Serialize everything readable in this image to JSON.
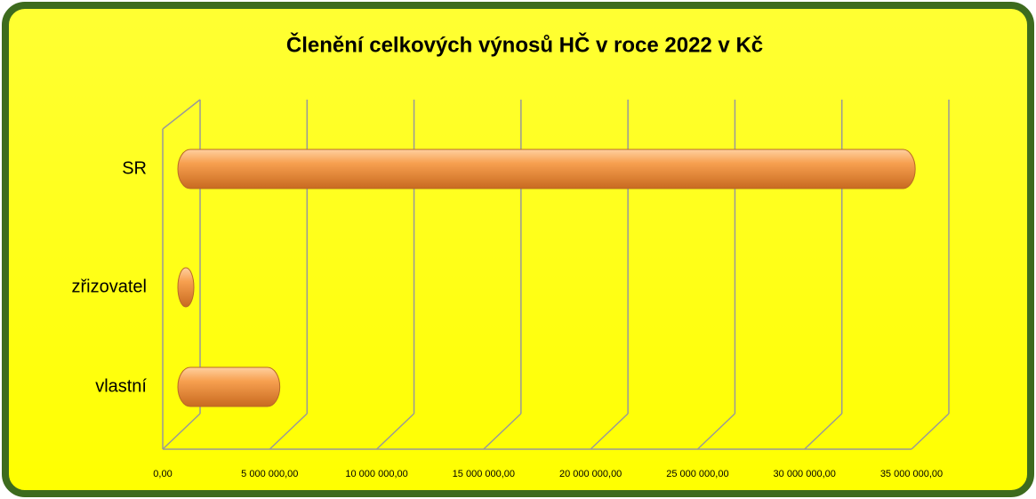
{
  "chart_data": {
    "type": "bar",
    "orientation": "horizontal",
    "title": "Členění celkových výnosů HČ v roce 2022 v Kč",
    "categories": [
      "SR",
      "zřizovatel",
      "vlastní"
    ],
    "values": [
      34300000,
      500000,
      4600000
    ],
    "color": "#f7a050",
    "xlim": [
      0,
      35000000
    ],
    "xticks": [
      {
        "value": 0,
        "label": "0,00"
      },
      {
        "value": 5000000,
        "label": "5 000 000,00"
      },
      {
        "value": 10000000,
        "label": "10 000 000,00"
      },
      {
        "value": 15000000,
        "label": "15 000 000,00"
      },
      {
        "value": 20000000,
        "label": "20 000 000,00"
      },
      {
        "value": 25000000,
        "label": "25 000 000,00"
      },
      {
        "value": 30000000,
        "label": "30 000 000,00"
      },
      {
        "value": 35000000,
        "label": "35 000 000,00"
      }
    ],
    "grid": true
  }
}
